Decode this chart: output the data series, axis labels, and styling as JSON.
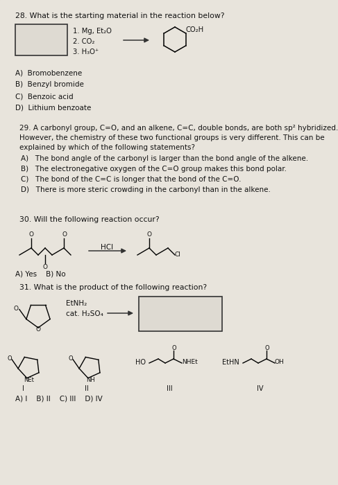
{
  "bg_color": "#c8c4bc",
  "page_bg": "#e8e4dc",
  "title28": "28. What is the starting material in the reaction below?",
  "q28_choices": [
    "A)  Bromobenzene",
    "B)  Benzyl bromide",
    "C)  Benzoic acid",
    "D)  Lithium benzoate"
  ],
  "title29_line1": "29. A carbonyl group, C=O, and an alkene, C=C, double bonds, are both sp² hybridized.",
  "title29_line2": "However, the chemistry of these two functional groups is very different. This can be",
  "title29_line3": "explained by which of the following statements?",
  "q29_choices": [
    "A)   The bond angle of the carbonyl is larger than the bond angle of the alkene.",
    "B)   The electronegative oxygen of the C=O group makes this bond polar.",
    "C)   The bond of the C=C is longer that the bond of the C=O.",
    "D)   There is more steric crowding in the carbonyl than in the alkene."
  ],
  "title30": "30. Will the following reaction occur?",
  "q30_choices": "A) Yes    B) No",
  "title31": "31. What is the product of the following reaction?",
  "q31_choices": "A) I    B) II    C) III    D) IV",
  "text_color": "#111111",
  "text_color2": "#222222"
}
